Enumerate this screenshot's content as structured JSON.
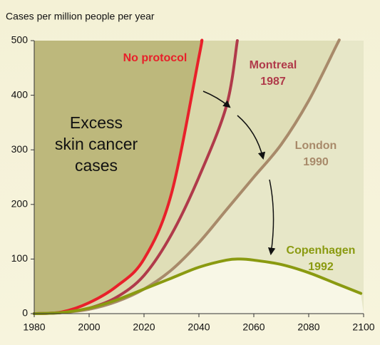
{
  "chart_data": {
    "type": "line",
    "ylabel": "Cases per million people per year",
    "annotation": [
      "Excess",
      "skin cancer",
      "cases"
    ],
    "xlim": [
      1980,
      2100
    ],
    "xticks": [
      1980,
      2000,
      2020,
      2040,
      2060,
      2080,
      2100
    ],
    "ylim": [
      0,
      500
    ],
    "yticks": [
      0,
      100,
      200,
      300,
      400,
      500
    ],
    "grid": false,
    "series": [
      {
        "name": "No protocol",
        "color": "#e8202a",
        "x": [
          1980,
          1990,
          2000,
          2010,
          2020,
          2030,
          2040,
          2041
        ],
        "values": [
          0,
          3,
          20,
          50,
          100,
          220,
          470,
          500
        ]
      },
      {
        "name": "Montreal 1987",
        "color": "#b03a4a",
        "x": [
          1980,
          1990,
          2000,
          2010,
          2020,
          2030,
          2040,
          2050,
          2054
        ],
        "values": [
          0,
          2,
          10,
          30,
          70,
          145,
          250,
          380,
          500
        ]
      },
      {
        "name": "London 1990",
        "color": "#a88a6a",
        "x": [
          1980,
          1990,
          2000,
          2010,
          2020,
          2030,
          2040,
          2050,
          2060,
          2070,
          2080,
          2090,
          2091
        ],
        "values": [
          0,
          2,
          8,
          22,
          45,
          80,
          130,
          190,
          250,
          310,
          390,
          490,
          500
        ]
      },
      {
        "name": "Copenhagen 1992",
        "color": "#8a9a10",
        "x": [
          1980,
          1990,
          2000,
          2010,
          2020,
          2030,
          2040,
          2050,
          2055,
          2060,
          2070,
          2080,
          2090,
          2099
        ],
        "values": [
          0,
          2,
          10,
          25,
          45,
          65,
          85,
          98,
          100,
          98,
          90,
          75,
          55,
          37
        ]
      }
    ]
  }
}
